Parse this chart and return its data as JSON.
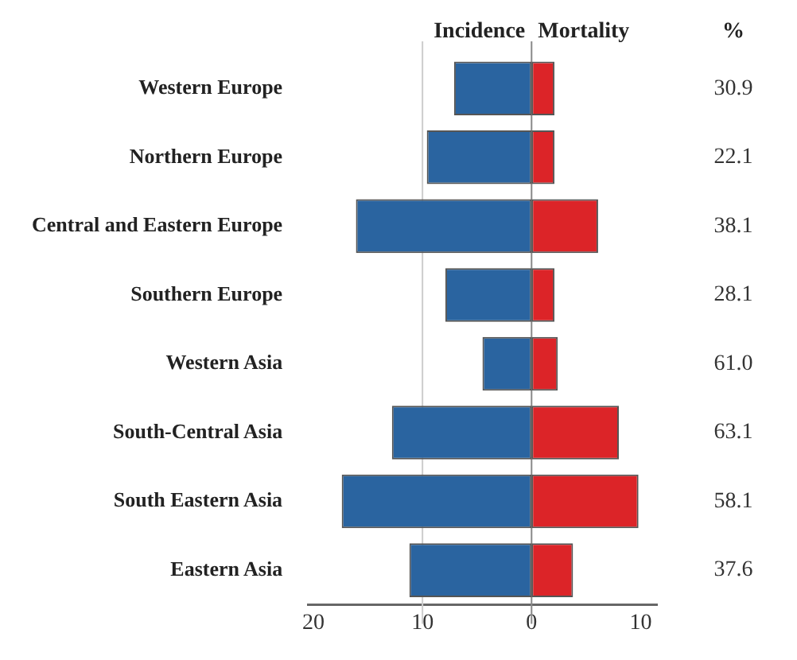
{
  "chart_data": {
    "type": "bar",
    "orientation": "horizontal",
    "stacked": true,
    "categories": [
      "Western Europe",
      "Northern Europe",
      "Central and Eastern Europe",
      "Southern Europe",
      "Western Asia",
      "South-Central Asia",
      "South Eastern Asia",
      "Eastern Asia"
    ],
    "series": [
      {
        "name": "Incidence",
        "color": "#2a64a0",
        "values": [
          -7.1,
          -9.6,
          -16.1,
          -7.9,
          -4.5,
          -12.8,
          -17.4,
          -11.2
        ]
      },
      {
        "name": "Mortality",
        "color": "#dc2428",
        "values": [
          2.1,
          2.1,
          6.1,
          2.1,
          2.4,
          8.0,
          9.8,
          3.8
        ]
      }
    ],
    "xlim": [
      -20.5,
      11.5
    ],
    "xticks": [
      {
        "value": -20,
        "label": "20"
      },
      {
        "value": -10,
        "label": "10"
      },
      0,
      10
    ],
    "ref_lines": [
      {
        "axis": "x",
        "value": -10,
        "color": "#cccccc"
      },
      {
        "axis": "x",
        "value": 0,
        "color": "#888888"
      }
    ],
    "annotations": [
      "%",
      "30.9",
      "22.1",
      "38.1",
      "28.1",
      "61.0",
      "63.1",
      "58.1",
      "37.6"
    ]
  }
}
